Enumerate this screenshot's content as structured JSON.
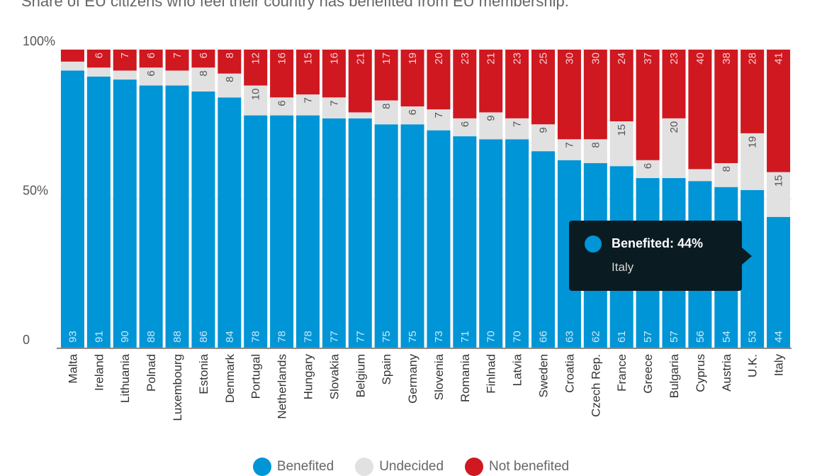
{
  "subtitle": "Share of EU citizens who feel their country has benefited from EU membership.",
  "colors": {
    "benefited": "#0095d6",
    "undecided": "#e1e1e1",
    "not_benefited": "#cf1820",
    "axis": "#888888",
    "grid": "#e6e6e6"
  },
  "legend": [
    {
      "label": "Benefited",
      "color": "#0095d6"
    },
    {
      "label": "Undecided",
      "color": "#e1e1e1"
    },
    {
      "label": "Not benefited",
      "color": "#cf1820"
    }
  ],
  "tooltip": {
    "title": "Benefited: 44%",
    "subtitle": "Italy",
    "color": "#0095d6"
  },
  "chart_data": {
    "type": "bar",
    "stacked": true,
    "title": "",
    "subtitle": "Share of EU citizens who feel their country has benefited from EU membership.",
    "xlabel": "",
    "ylabel": "",
    "ylim": [
      0,
      100
    ],
    "y_ticks": [
      {
        "value": 0,
        "label": "0"
      },
      {
        "value": 50,
        "label": "50%"
      },
      {
        "value": 100,
        "label": "100%"
      }
    ],
    "categories": [
      "Malta",
      "Ireland",
      "Lithuania",
      "Polnad",
      "Luxembourg",
      "Estonia",
      "Denmark",
      "Portugal",
      "Netherlands",
      "Hungary",
      "Slovakia",
      "Belgium",
      "Spain",
      "Germany",
      "Slovenia",
      "Romania",
      "Finlnad",
      "Latvia",
      "Sweden",
      "Croatia",
      "Czech Rep.",
      "France",
      "Greece",
      "Bulgaria",
      "Cyprus",
      "Austria",
      "U.K.",
      "Italy"
    ],
    "series": [
      {
        "name": "Benefited",
        "values": [
          93,
          91,
          90,
          88,
          88,
          86,
          84,
          78,
          78,
          78,
          77,
          77,
          75,
          75,
          73,
          71,
          70,
          70,
          66,
          63,
          62,
          61,
          57,
          57,
          56,
          54,
          53,
          44
        ],
        "labels": [
          "93",
          "91",
          "90",
          "88",
          "88",
          "86",
          "84",
          "78",
          "78",
          "78",
          "77",
          "77",
          "75",
          "75",
          "73",
          "71",
          "70",
          "70",
          "66",
          "63",
          "62",
          "61",
          "57",
          "57",
          "56",
          "54",
          "53",
          "44"
        ]
      },
      {
        "name": "Undecided",
        "values": [
          3,
          3,
          3,
          6,
          5,
          8,
          8,
          10,
          6,
          7,
          7,
          2,
          8,
          6,
          7,
          6,
          9,
          7,
          9,
          7,
          8,
          15,
          6,
          20,
          4,
          8,
          19,
          15
        ],
        "labels": [
          "",
          "",
          "",
          "6",
          "",
          "8",
          "8",
          "10",
          "6",
          "7",
          "7",
          "",
          "8",
          "6",
          "7",
          "6",
          "9",
          "7",
          "9",
          "7",
          "8",
          "15",
          "6",
          "20",
          "",
          "8",
          "19",
          "15"
        ]
      },
      {
        "name": "Not benefited",
        "values": [
          4,
          6,
          7,
          6,
          7,
          6,
          8,
          12,
          16,
          15,
          16,
          21,
          17,
          19,
          20,
          23,
          21,
          23,
          25,
          30,
          30,
          24,
          37,
          23,
          40,
          38,
          28,
          41
        ],
        "labels": [
          "",
          "6",
          "7",
          "6",
          "7",
          "6",
          "8",
          "12",
          "16",
          "15",
          "16",
          "21",
          "17",
          "19",
          "20",
          "23",
          "21",
          "23",
          "25",
          "30",
          "30",
          "24",
          "37",
          "23",
          "40",
          "38",
          "28",
          "41"
        ]
      }
    ]
  }
}
